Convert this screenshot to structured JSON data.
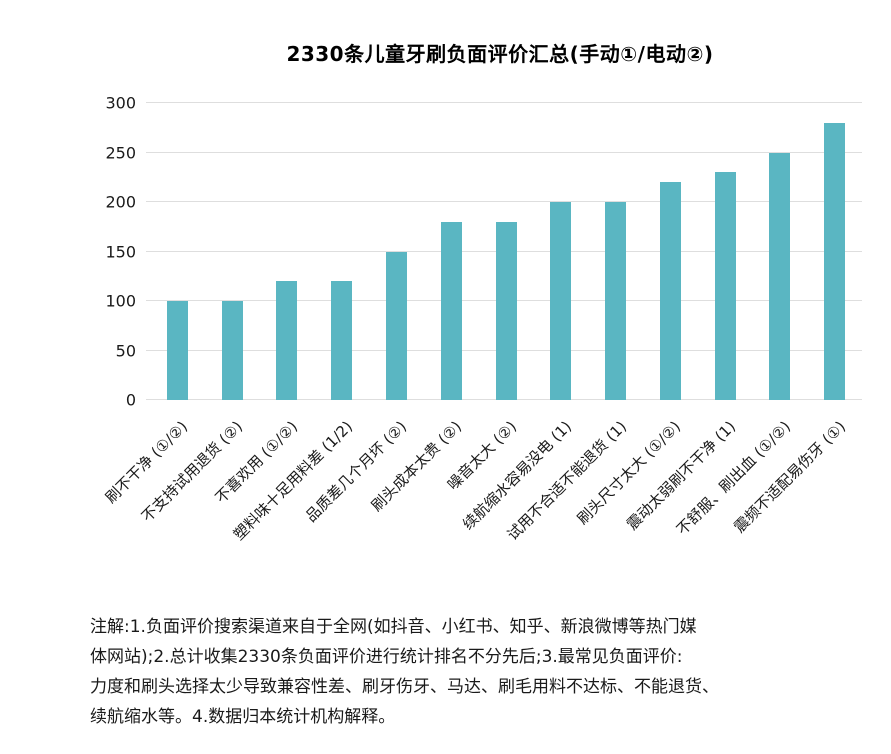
{
  "chart_data": {
    "type": "bar",
    "title": "2330条儿童牙刷负面评价汇总(手动①/电动②)",
    "categories": [
      "刷不干净 (①/②)",
      "不支持试用退货 (②)",
      "不喜欢用 (①/②)",
      "塑料味十足用料差 (1/2)",
      "品质差几个月坏 (②)",
      "刷头成本太贵 (②)",
      "噪音太大 (②)",
      "续航缩水容易没电 (1)",
      "试用不合适不能退货 (1)",
      "刷头尺寸太大 (①/②)",
      "震动太弱刷不干净 (1)",
      "不舒服、刷出血 (①/②)",
      "震频不适配易伤牙 (①)"
    ],
    "values": [
      100,
      100,
      120,
      120,
      150,
      180,
      180,
      200,
      200,
      220,
      230,
      250,
      280
    ],
    "yticks": [
      0,
      50,
      100,
      150,
      200,
      250,
      300
    ],
    "ylim": [
      0,
      300
    ],
    "xlabel": "",
    "ylabel": "",
    "bar_color": "#5ab6c2",
    "gridline_color": "#dedede",
    "grid": true,
    "legend": "none"
  },
  "note": {
    "text": "注解:1.负面评价搜索渠道来自于全网(如抖音、小红书、知乎、新浪微博等热门媒\n体网站);2.总计收集2330条负面评价进行统计排名不分先后;3.最常见负面评价:\n力度和刷头选择太少导致兼容性差、刷牙伤牙、马达、刷毛用料不达标、不能退货、\n续航缩水等。4.数据归本统计机构解释。"
  }
}
